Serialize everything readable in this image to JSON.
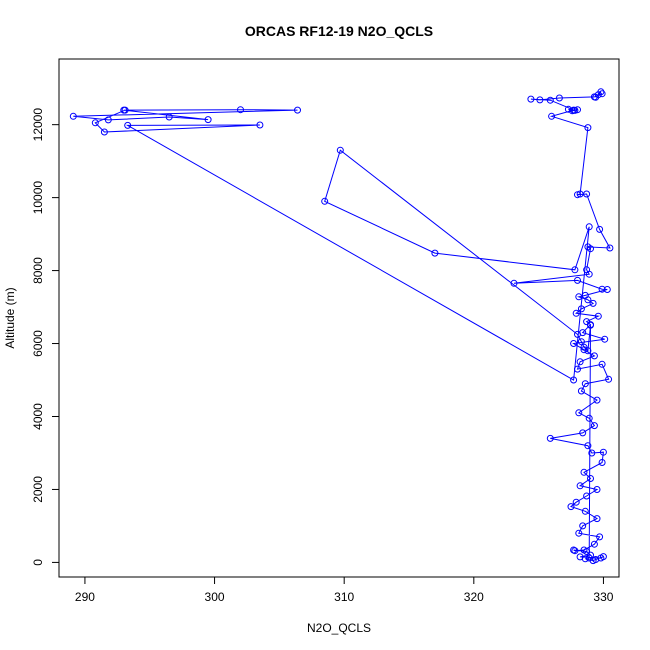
{
  "chart_data": {
    "type": "scatter",
    "title": "ORCAS RF12-19 N2O_QCLS",
    "xlabel": "N2O_QCLS",
    "ylabel": "Altitude (m)",
    "xlim": [
      288,
      331.2
    ],
    "ylim": [
      -400,
      13800
    ],
    "xticks": [
      290,
      300,
      310,
      320,
      330
    ],
    "yticks": [
      0,
      2000,
      4000,
      6000,
      8000,
      10000,
      12000
    ],
    "marker": "open-circle",
    "connected": true,
    "grid": false,
    "colors": {
      "series": "#0000ff",
      "axes": "#000000",
      "background": "#ffffff"
    },
    "series": [
      {
        "points": [
          [
            329.4,
            12750
          ],
          [
            329.8,
            12900
          ],
          [
            329.6,
            12820
          ],
          [
            329.9,
            12850
          ],
          [
            329.3,
            12760
          ],
          [
            326.6,
            12730
          ],
          [
            325.1,
            12680
          ],
          [
            324.4,
            12700
          ],
          [
            325.9,
            12670
          ],
          [
            327.8,
            12390
          ],
          [
            327.3,
            12420
          ],
          [
            327.6,
            12380
          ],
          [
            328.0,
            12410
          ],
          [
            327.7,
            12400
          ],
          [
            326.0,
            12230
          ],
          [
            328.8,
            11920
          ],
          [
            328.2,
            10100
          ],
          [
            328.0,
            10080
          ],
          [
            328.7,
            10100
          ],
          [
            329.7,
            9130
          ],
          [
            330.5,
            8620
          ],
          [
            328.8,
            8650
          ],
          [
            329.0,
            8600
          ],
          [
            328.7,
            8020
          ],
          [
            328.9,
            7900
          ],
          [
            323.1,
            7650
          ],
          [
            328.0,
            7730
          ],
          [
            329.9,
            7490
          ],
          [
            330.3,
            7480
          ],
          [
            328.6,
            7320
          ],
          [
            328.1,
            7280
          ],
          [
            328.8,
            7200
          ],
          [
            329.2,
            7100
          ],
          [
            328.3,
            6950
          ],
          [
            327.9,
            6830
          ],
          [
            329.6,
            6750
          ],
          [
            328.7,
            6600
          ],
          [
            329.0,
            6520
          ],
          [
            328.4,
            6300
          ],
          [
            330.1,
            6120
          ],
          [
            327.7,
            6000
          ],
          [
            328.5,
            5830
          ],
          [
            329.3,
            5660
          ],
          [
            328.2,
            5500
          ],
          [
            328.0,
            5300
          ],
          [
            329.9,
            5430
          ],
          [
            330.4,
            5020
          ],
          [
            328.6,
            4900
          ],
          [
            328.3,
            4700
          ],
          [
            329.5,
            4450
          ],
          [
            328.1,
            4100
          ],
          [
            328.9,
            3950
          ],
          [
            329.3,
            3750
          ],
          [
            328.4,
            3550
          ],
          [
            325.9,
            3400
          ],
          [
            328.8,
            3200
          ],
          [
            329.1,
            3000
          ],
          [
            330.0,
            3020
          ],
          [
            329.9,
            2740
          ],
          [
            328.5,
            2470
          ],
          [
            329.0,
            2300
          ],
          [
            328.2,
            2100
          ],
          [
            329.5,
            2000
          ],
          [
            328.7,
            1820
          ],
          [
            327.9,
            1650
          ],
          [
            327.5,
            1530
          ],
          [
            328.6,
            1400
          ],
          [
            329.5,
            1200
          ],
          [
            328.4,
            1000
          ],
          [
            328.1,
            800
          ],
          [
            329.7,
            700
          ],
          [
            329.3,
            500
          ],
          [
            328.5,
            340
          ],
          [
            327.8,
            320
          ],
          [
            327.7,
            340
          ],
          [
            328.7,
            300
          ],
          [
            329.0,
            200
          ],
          [
            328.2,
            150
          ],
          [
            329.8,
            120
          ],
          [
            330.0,
            160
          ],
          [
            329.4,
            80
          ],
          [
            329.2,
            50
          ],
          [
            328.6,
            100
          ],
          [
            328.9,
            120
          ],
          [
            329.0,
            6500
          ],
          [
            328.8,
            5800
          ],
          [
            328.5,
            5900
          ],
          [
            328.3,
            6050
          ],
          [
            328.0,
            6250
          ],
          [
            309.7,
            11300
          ],
          [
            308.5,
            9900
          ],
          [
            317.0,
            8480
          ],
          [
            327.8,
            8020
          ],
          [
            328.9,
            9200
          ],
          [
            327.7,
            5000
          ],
          [
            293.3,
            11980
          ],
          [
            303.5,
            11990
          ],
          [
            291.5,
            11800
          ],
          [
            290.8,
            12050
          ],
          [
            293.1,
            12400
          ],
          [
            302.0,
            12410
          ],
          [
            306.4,
            12400
          ],
          [
            289.1,
            12230
          ],
          [
            291.8,
            12130
          ],
          [
            296.5,
            12210
          ],
          [
            299.5,
            12140
          ],
          [
            293.0,
            12400
          ]
        ]
      }
    ]
  }
}
